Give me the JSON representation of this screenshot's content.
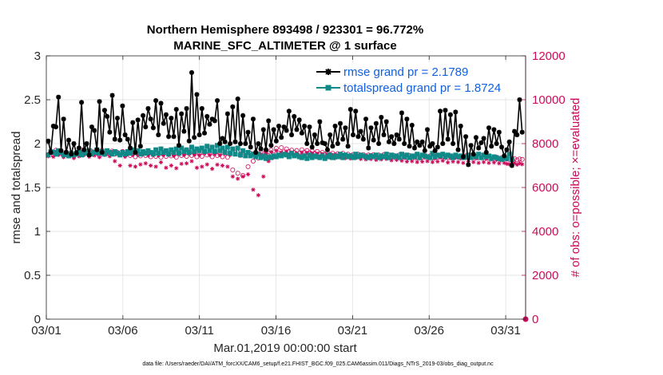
{
  "chart_data": {
    "type": "line",
    "title": "Northern Hemisphere 893498 / 923301 = 96.772%",
    "subtitle": "MARINE_SFC_ALTIMETER @ 1 surface",
    "xlabel": "Mar.01,2019 00:00:00 start",
    "ylabel_left": "rmse and totalspread",
    "ylabel_right": "# of obs: o=possible; ×=evaluated",
    "footer": "data file: /Users/raeder/DAI/ATM_forcXX/CAM6_setup/f.e21.FHIST_BGC.f09_025.CAM6assim.011/Diags_NTrS_2019-03/obs_diag_output.nc",
    "xlim": [
      1,
      32.3
    ],
    "ylim_left": [
      0,
      3
    ],
    "ylim_right": [
      0,
      12000
    ],
    "x_ticks": [
      1,
      6,
      11,
      16,
      21,
      26,
      31
    ],
    "x_tick_labels": [
      "03/01",
      "03/06",
      "03/11",
      "03/16",
      "03/21",
      "03/26",
      "03/31"
    ],
    "y_left_ticks": [
      0,
      0.5,
      1,
      1.5,
      2,
      2.5,
      3
    ],
    "y_left_tick_labels": [
      "0",
      "0.5",
      "1",
      "1.5",
      "2",
      "2.5",
      "3"
    ],
    "y_right_ticks": [
      0,
      2000,
      4000,
      6000,
      8000,
      10000,
      12000
    ],
    "y_right_tick_labels": [
      "0",
      "2000",
      "4000",
      "6000",
      "8000",
      "10000",
      "12000"
    ],
    "grid": true,
    "legend_position": "top-right",
    "colors": {
      "rmse": "#000000",
      "spread": "#0f8a88",
      "obs": "#cc0a5a",
      "right_axis": "#cc0a5a",
      "legend_text": "#1060e0",
      "grid": "#dcdcdc"
    },
    "series": [
      {
        "name": "rmse grand pr = 2.1789",
        "axis": "left",
        "values": [
          2.03,
          1.9,
          2.2,
          2.19,
          2.53,
          1.92,
          2.28,
          1.9,
          2.04,
          1.88,
          2.0,
          1.89,
          1.95,
          2.47,
          1.93,
          2.0,
          1.87,
          2.19,
          2.15,
          1.93,
          2.48,
          1.9,
          2.38,
          2.31,
          2.13,
          2.55,
          2.05,
          2.29,
          2.04,
          2.43,
          2.1,
          2.05,
          1.95,
          2.24,
          1.9,
          2.27,
          1.97,
          2.32,
          2.19,
          2.4,
          2.28,
          2.18,
          2.49,
          2.1,
          2.46,
          2.23,
          2.33,
          2.08,
          2.29,
          2.08,
          2.39,
          1.98,
          2.34,
          2.14,
          2.4,
          2.03,
          2.81,
          2.07,
          2.56,
          2.1,
          2.4,
          2.12,
          2.31,
          2.22,
          2.28,
          2.26,
          2.49,
          2.0,
          2.06,
          2.02,
          2.34,
          2.0,
          2.42,
          2.02,
          2.51,
          2.0,
          2.32,
          2.0,
          2.13,
          1.96,
          2.28,
          1.9,
          2.0,
          1.94,
          2.16,
          1.93,
          2.26,
          1.98,
          2.16,
          2.03,
          2.2,
          2.07,
          2.19,
          2.15,
          2.37,
          2.1,
          2.31,
          2.16,
          2.27,
          2.12,
          2.2,
          2.0,
          2.19,
          1.96,
          2.1,
          2.0,
          2.25,
          2.01,
          2.0,
          1.93,
          2.1,
          1.97,
          2.2,
          2.0,
          2.23,
          2.05,
          2.18,
          1.97,
          2.39,
          2.1,
          2.37,
          2.08,
          2.14,
          2.05,
          2.28,
          1.95,
          2.18,
          2.04,
          2.23,
          2.0,
          2.3,
          2.1,
          2.25,
          2.02,
          2.08,
          2.0,
          2.1,
          2.05,
          2.35,
          2.0,
          2.28,
          1.97,
          2.21,
          1.95,
          2.02,
          1.98,
          2.02,
          1.92,
          2.16,
          1.97,
          2.0,
          1.92,
          1.96,
          2.37,
          2.0,
          2.38,
          2.05,
          2.33,
          2.0,
          2.36,
          1.93,
          2.2,
          1.85,
          2.08,
          1.76,
          1.98,
          1.88,
          2.07,
          1.95,
          2.01,
          2.06,
          1.9,
          2.18,
          1.97,
          2.16,
          2.0,
          2.13,
          1.96,
          1.86,
          1.93,
          2.02,
          1.75,
          2.14,
          2.1,
          2.5,
          2.13
        ]
      },
      {
        "name": "totalspread grand pr = 1.8724",
        "axis": "left",
        "values": [
          1.87,
          1.91,
          1.9,
          1.88,
          1.92,
          1.9,
          1.87,
          1.88,
          1.86,
          1.89,
          1.87,
          1.88,
          1.9,
          1.87,
          1.91,
          1.89,
          1.92,
          1.88,
          1.9,
          1.93,
          1.89,
          1.91,
          1.88,
          1.92,
          1.9,
          1.88,
          1.91,
          1.89,
          1.87,
          1.9,
          1.88,
          1.91,
          1.89,
          1.93,
          1.9,
          1.92,
          1.88,
          1.91,
          1.89,
          1.92,
          1.9,
          1.88,
          1.93,
          1.89,
          1.94,
          1.9,
          1.92,
          1.88,
          1.93,
          1.9,
          1.94,
          1.89,
          1.95,
          1.91,
          1.93,
          1.9,
          1.96,
          1.91,
          1.94,
          1.92,
          1.95,
          1.91,
          1.97,
          1.92,
          1.96,
          1.91,
          1.98,
          1.92,
          1.95,
          1.9,
          1.96,
          1.89,
          1.94,
          1.88,
          1.95,
          1.87,
          1.92,
          1.86,
          1.9,
          1.86,
          1.88,
          1.85,
          1.88,
          1.84,
          1.86,
          1.83,
          1.85,
          1.84,
          1.86,
          1.85,
          1.87,
          1.86,
          1.88,
          1.87,
          1.85,
          1.89,
          1.86,
          1.87,
          1.85,
          1.84,
          1.86,
          1.83,
          1.87,
          1.84,
          1.86,
          1.85,
          1.84,
          1.86,
          1.83,
          1.85,
          1.87,
          1.84,
          1.86,
          1.85,
          1.88,
          1.84,
          1.87,
          1.85,
          1.86,
          1.84,
          1.88,
          1.85,
          1.87,
          1.86,
          1.85,
          1.84,
          1.86,
          1.85,
          1.87,
          1.84,
          1.86,
          1.85,
          1.88,
          1.84,
          1.87,
          1.85,
          1.86,
          1.84,
          1.88,
          1.85,
          1.87,
          1.84,
          1.86,
          1.85,
          1.88,
          1.84,
          1.87,
          1.86,
          1.85,
          1.84,
          1.89,
          1.85,
          1.87,
          1.86,
          1.88,
          1.85,
          1.87,
          1.86,
          1.84,
          1.87,
          1.85,
          1.86,
          1.84,
          1.85,
          1.87,
          1.84,
          1.86,
          1.85,
          1.88,
          1.84,
          1.87,
          1.85,
          1.86,
          1.83,
          1.85,
          1.84,
          1.83,
          1.82,
          1.84,
          1.83,
          1.88,
          1.82
        ]
      },
      {
        "name": "possible",
        "axis": "right",
        "values": [
          7500,
          7650,
          7480,
          7700,
          7550,
          7600,
          7450,
          7620,
          7500,
          7580,
          7420,
          7600,
          7500,
          7700,
          7550,
          7620,
          7480,
          7650,
          7530,
          7600,
          7450,
          7700,
          7560,
          7620,
          7500,
          7660,
          7520,
          7600,
          7480,
          7640,
          7520,
          7600,
          7460,
          7560,
          7400,
          7560,
          7440,
          7600,
          7460,
          7540,
          7400,
          7560,
          7420,
          7540,
          7380,
          7560,
          7420,
          7580,
          7440,
          7520,
          7380,
          7600,
          7460,
          7560,
          7420,
          7620,
          7460,
          7580,
          7400,
          7560,
          7420,
          7640,
          7480,
          7560,
          7400,
          7600,
          7460,
          7560,
          7400,
          7620,
          7380,
          7560,
          6800,
          7600,
          6650,
          7520,
          6550,
          7560,
          6950,
          7560,
          7200,
          7560,
          7340,
          7600,
          7420,
          7640,
          7450,
          7700,
          7500,
          7780,
          7560,
          7820,
          7620,
          7760,
          7640,
          7700,
          7600,
          7680,
          7560,
          7720,
          7600,
          7680,
          7580,
          7660,
          7560,
          7640,
          7540,
          7600,
          7520,
          7580,
          7500,
          7560,
          7480,
          7540,
          7500,
          7560,
          7480,
          7520,
          7460,
          7500,
          7480,
          7520,
          7460,
          7500,
          7440,
          7480,
          7460,
          7500,
          7420,
          7480,
          7440,
          7500,
          7460,
          7480,
          7420,
          7460,
          7440,
          7480,
          7400,
          7440,
          7380,
          7460,
          7400,
          7440,
          7360,
          7420,
          7380,
          7460,
          7400,
          7440,
          7360,
          7420,
          7380,
          7460,
          7420,
          7440,
          7360,
          7440,
          7400,
          7460,
          7380,
          7420,
          7360,
          7440,
          7400,
          7460,
          7380,
          7420,
          7360,
          7440,
          7380,
          7420,
          7340,
          7400,
          7360,
          7380,
          7320,
          7360,
          7340,
          7300,
          7280,
          7300,
          7320,
          7260,
          7300,
          7280
        ]
      },
      {
        "name": "evaluated",
        "axis": "right",
        "values": [
          7420,
          7600,
          7400,
          7640,
          7480,
          7540,
          7380,
          7560,
          7420,
          7520,
          7340,
          7540,
          7420,
          7640,
          7480,
          7560,
          7400,
          7600,
          7460,
          7540,
          7380,
          7640,
          7480,
          7560,
          7420,
          7600,
          7200,
          7540,
          7000,
          7560,
          7400,
          7520,
          7000,
          7480,
          6950,
          7480,
          7050,
          7520,
          7100,
          7460,
          7000,
          7480,
          6950,
          7460,
          7150,
          7480,
          6900,
          7500,
          7000,
          7440,
          6880,
          7520,
          7080,
          7480,
          7100,
          7540,
          7200,
          7500,
          6900,
          7480,
          6950,
          7560,
          7050,
          7480,
          6850,
          7520,
          7040,
          7480,
          7000,
          7540,
          6950,
          7480,
          6500,
          7520,
          6400,
          7440,
          6500,
          7480,
          6600,
          7480,
          5900,
          7480,
          5650,
          7520,
          6500,
          7560,
          7200,
          7620,
          7380,
          7680,
          7480,
          7600,
          7520,
          7640,
          7500,
          7580,
          7480,
          7560,
          7460,
          7600,
          7480,
          7580,
          7440,
          7560,
          7420,
          7540,
          7400,
          7520,
          7380,
          7500,
          7360,
          7480,
          7340,
          7460,
          7380,
          7480,
          7340,
          7440,
          7320,
          7420,
          7340,
          7440,
          7300,
          7420,
          7280,
          7400,
          7300,
          7420,
          7260,
          7380,
          7280,
          7400,
          7300,
          7380,
          7240,
          7360,
          7260,
          7380,
          7220,
          7340,
          7180,
          7360,
          7200,
          7340,
          7160,
          7320,
          7180,
          7360,
          7200,
          7340,
          7160,
          7320,
          7180,
          7360,
          7220,
          7340,
          7140,
          7340,
          7180,
          7360,
          7160,
          7320,
          7120,
          7340,
          7180,
          7360,
          7160,
          7320,
          7120,
          7340,
          7160,
          7300,
          7120,
          7280,
          7140,
          7260,
          7100,
          7240,
          7120,
          7080,
          7060,
          7100,
          7120,
          7040,
          7100,
          7060
        ]
      }
    ]
  }
}
